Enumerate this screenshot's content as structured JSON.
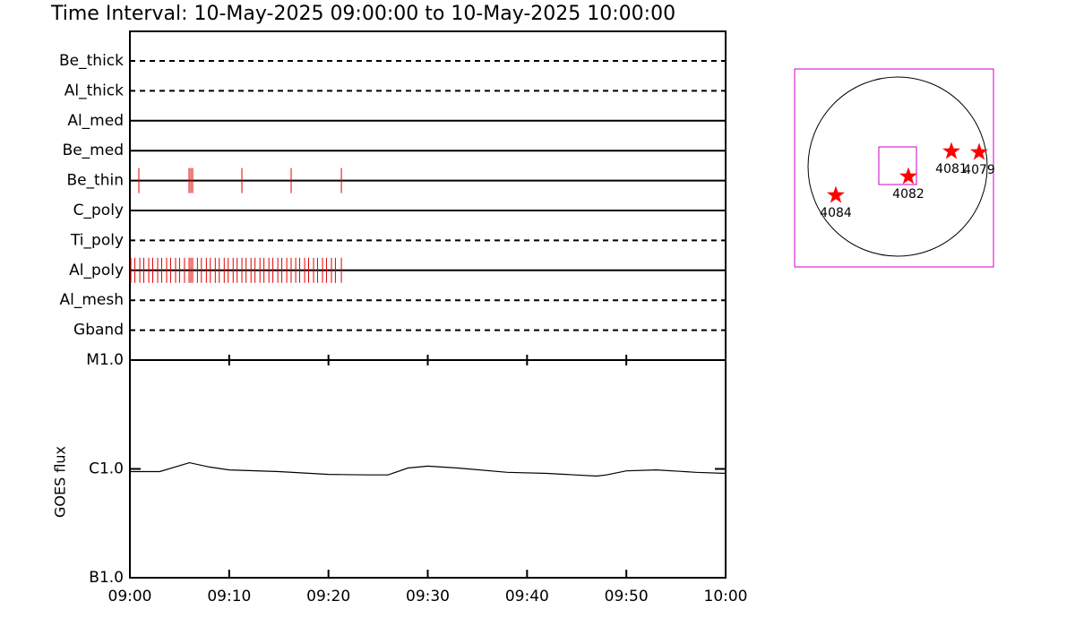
{
  "chart_data": [
    {
      "type": "timeline",
      "title": "Time Interval: 10-May-2025 09:00:00 to 10-May-2025 10:00:00",
      "xlim": [
        0,
        60
      ],
      "event_color": "#e00000",
      "rows": [
        {
          "name": "Be_thick",
          "style": "dashed",
          "events": []
        },
        {
          "name": "Al_thick",
          "style": "dashed",
          "events": []
        },
        {
          "name": "Al_med",
          "style": "solid",
          "events": []
        },
        {
          "name": "Be_med",
          "style": "solid",
          "events": []
        },
        {
          "name": "Be_thin",
          "style": "solid",
          "events": [
            0.9,
            5.96,
            6.14,
            6.32,
            11.28,
            16.24,
            21.3
          ]
        },
        {
          "name": "C_poly",
          "style": "solid",
          "events": []
        },
        {
          "name": "Ti_poly",
          "style": "dashed",
          "events": []
        },
        {
          "name": "Al_poly",
          "style": "solid",
          "events": [
            0.1,
            0.5,
            1.0,
            1.4,
            1.9,
            2.3,
            2.8,
            3.2,
            3.7,
            4.1,
            4.6,
            5.0,
            5.5,
            5.96,
            6.14,
            6.32,
            6.8,
            7.2,
            7.7,
            8.1,
            8.6,
            9.0,
            9.5,
            9.9,
            10.4,
            10.8,
            11.28,
            11.7,
            12.2,
            12.6,
            13.1,
            13.5,
            14.0,
            14.4,
            14.9,
            15.3,
            15.8,
            16.24,
            16.7,
            17.1,
            17.6,
            18.0,
            18.5,
            18.9,
            19.4,
            19.8,
            20.3,
            20.7,
            21.3
          ]
        },
        {
          "name": "Al_mesh",
          "style": "dashed",
          "events": []
        },
        {
          "name": "Gband",
          "style": "dashed",
          "events": []
        }
      ]
    },
    {
      "type": "line",
      "ylabel": "GOES flux",
      "log_scale": true,
      "color": "#000000",
      "x": [
        0,
        3,
        6,
        8,
        10,
        15,
        20,
        24,
        26,
        28,
        30,
        33,
        38,
        42,
        47,
        48,
        50,
        53,
        57,
        60
      ],
      "values": [
        9.45e-07,
        9.45e-07,
        1.14e-06,
        1.04e-06,
        9.8e-07,
        9.45e-07,
        8.9e-07,
        8.8e-07,
        8.8e-07,
        1.02e-06,
        1.06e-06,
        1.02e-06,
        9.3e-07,
        9.1e-07,
        8.6e-07,
        8.8e-07,
        9.6e-07,
        9.8e-07,
        9.3e-07,
        9.1e-07
      ],
      "xlim": [
        0,
        60
      ],
      "xticks": [
        {
          "value": 0,
          "label": "09:00"
        },
        {
          "value": 10,
          "label": "09:10"
        },
        {
          "value": 20,
          "label": "09:20"
        },
        {
          "value": 30,
          "label": "09:30"
        },
        {
          "value": 40,
          "label": "09:40"
        },
        {
          "value": 50,
          "label": "09:50"
        },
        {
          "value": 60,
          "label": "10:00"
        }
      ],
      "ylim": [
        1e-07,
        1e-05
      ],
      "yticks": [
        {
          "value": 1e-05,
          "label": "M1.0"
        },
        {
          "value": 1e-06,
          "label": "C1.0"
        },
        {
          "value": 1e-07,
          "label": "B1.0"
        }
      ]
    },
    {
      "type": "map",
      "xlim": [
        -1.15,
        1.07
      ],
      "ylim": [
        -1.12,
        1.09
      ],
      "box_color": "#cc00cc",
      "marker_color": "#ff0000",
      "disk_radius": 1,
      "fov_x": [
        -0.21,
        0.21
      ],
      "fov_y": [
        -0.2,
        0.22
      ],
      "regions": [
        {
          "label": "4084",
          "x": -0.69,
          "y": -0.32
        },
        {
          "label": "4082",
          "x": 0.12,
          "y": -0.11
        },
        {
          "label": "4081",
          "x": 0.6,
          "y": 0.17
        },
        {
          "label": "4079",
          "x": 0.91,
          "y": 0.16
        }
      ]
    }
  ]
}
